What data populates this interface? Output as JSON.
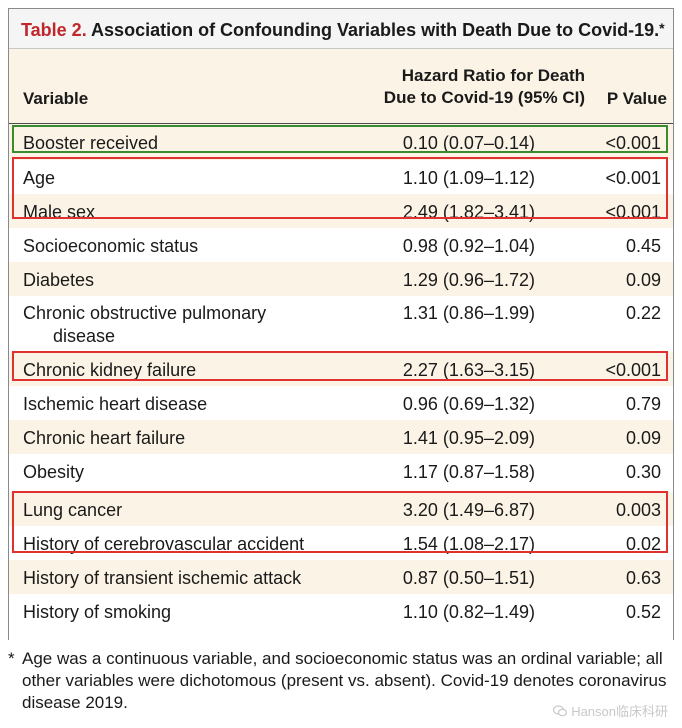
{
  "table": {
    "label": "Table 2.",
    "title": "Association of Confounding Variables with Death Due to Covid-19.",
    "title_mark": "*",
    "headers": {
      "variable": "Variable",
      "hr_line1": "Hazard Ratio for Death",
      "hr_line2": "Due to Covid-19 (95% CI)",
      "p_value": "P Value"
    },
    "rows": [
      {
        "variable": "Booster received",
        "hr": "0.10 (0.07–0.14)",
        "p": "<0.001"
      },
      {
        "variable": "Age",
        "hr": "1.10 (1.09–1.12)",
        "p": "<0.001"
      },
      {
        "variable": "Male sex",
        "hr": "2.49 (1.82–3.41)",
        "p": "<0.001"
      },
      {
        "variable": "Socioeconomic status",
        "hr": "0.98 (0.92–1.04)",
        "p": "0.45"
      },
      {
        "variable": "Diabetes",
        "hr": "1.29 (0.96–1.72)",
        "p": "0.09"
      },
      {
        "variable": "Chronic obstructive pulmonary",
        "variable_cont": "disease",
        "hr": "1.31 (0.86–1.99)",
        "p": "0.22"
      },
      {
        "variable": "Chronic kidney failure",
        "hr": "2.27 (1.63–3.15)",
        "p": "<0.001"
      },
      {
        "variable": "Ischemic heart disease",
        "hr": "0.96 (0.69–1.32)",
        "p": "0.79"
      },
      {
        "variable": "Chronic heart failure",
        "hr": "1.41 (0.95–2.09)",
        "p": "0.09"
      },
      {
        "variable": "Obesity",
        "hr": "1.17 (0.87–1.58)",
        "p": "0.30"
      },
      {
        "variable": "Lung cancer",
        "hr": "3.20 (1.49–6.87)",
        "p": "0.003"
      },
      {
        "variable": "History of cerebrovascular accident",
        "hr": "1.54 (1.08–2.17)",
        "p": "0.02"
      },
      {
        "variable": "History of transient ischemic attack",
        "hr": "0.87 (0.50–1.51)",
        "p": "0.63"
      },
      {
        "variable": "History of smoking",
        "hr": "1.10 (0.82–1.49)",
        "p": "0.52"
      }
    ]
  },
  "highlight_colors": {
    "green": "#3a8a2e",
    "red": "#e03131"
  },
  "footnote": {
    "mark": "*",
    "text": "Age was a continuous variable, and socioeconomic status was an ordinal variable; all other variables were dichotomous (present vs. absent). Covid-19 denotes coronavirus disease 2019."
  },
  "watermark": {
    "icon": "wechat-icon",
    "text": "Hanson临床科研"
  }
}
